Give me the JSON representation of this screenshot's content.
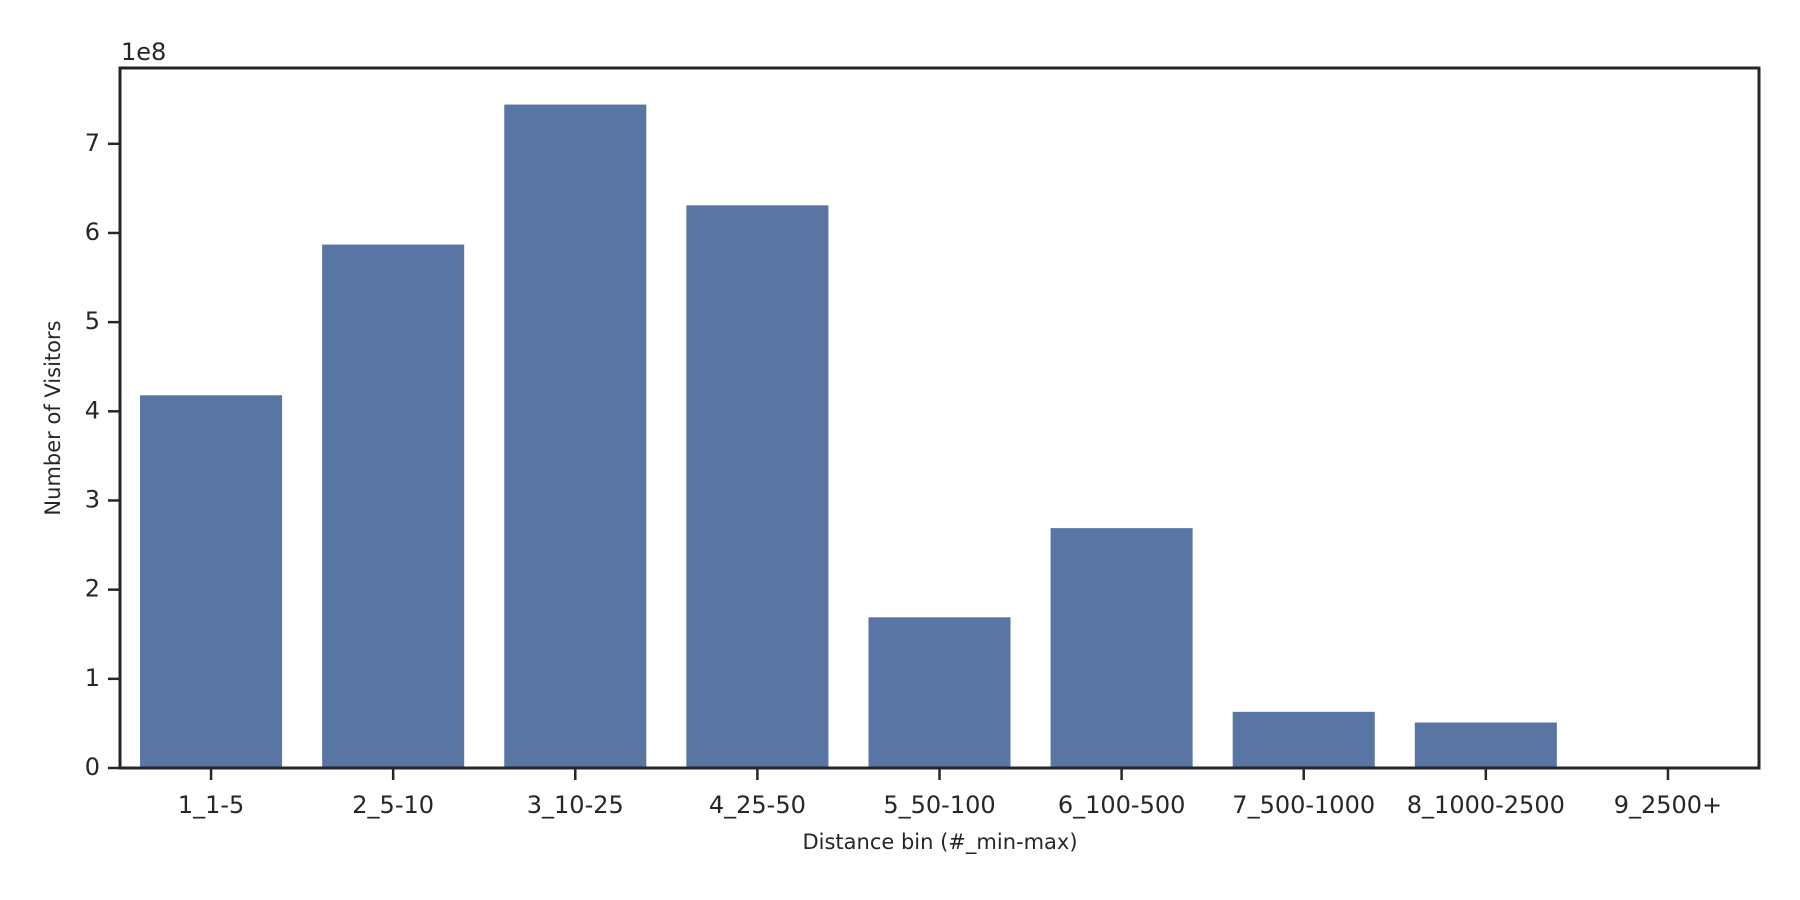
{
  "chart_data": {
    "type": "bar",
    "x_label": "Distance bin (#_min-max)",
    "y_label": "Number of Visitors",
    "offset_text": "1e8",
    "categories": [
      "1_1-5",
      "2_5-10",
      "3_10-25",
      "4_25-50",
      "5_50-100",
      "6_100-500",
      "7_500-1000",
      "8_1000-2500",
      "9_2500+"
    ],
    "values": [
      4.18,
      5.87,
      7.44,
      6.31,
      1.69,
      2.69,
      0.63,
      0.51,
      0
    ],
    "color": "#5875a4",
    "ylim": [
      0,
      7.85
    ],
    "yticks": [
      0,
      1,
      2,
      3,
      4,
      5,
      6,
      7
    ],
    "grid": false
  }
}
